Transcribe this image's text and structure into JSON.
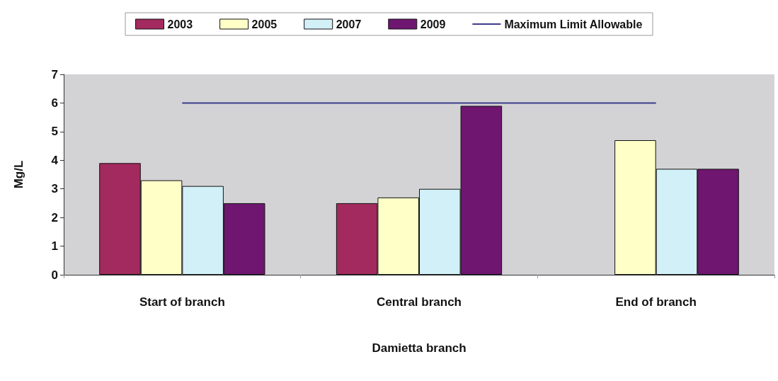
{
  "chart_data": {
    "type": "bar",
    "xlabel": "Damietta branch",
    "ylabel": "Mg/L",
    "categories": [
      "Start of branch",
      "Central branch",
      "End of branch"
    ],
    "series": [
      {
        "name": "2003",
        "color": "#a32a5e",
        "values": [
          3.9,
          2.5,
          null
        ]
      },
      {
        "name": "2005",
        "color": "#ffffc8",
        "values": [
          3.3,
          2.7,
          4.7
        ]
      },
      {
        "name": "2007",
        "color": "#d2f0f8",
        "values": [
          3.1,
          3.0,
          3.7
        ]
      },
      {
        "name": "2009",
        "color": "#6e1670",
        "values": [
          2.5,
          5.9,
          3.7
        ]
      },
      {
        "name": "Maximum Limit Allowable",
        "type": "line",
        "color": "#3c3c8c",
        "values": [
          6,
          6,
          6
        ],
        "marker": "none"
      }
    ],
    "ylim": [
      0,
      7
    ],
    "yticks": [
      0,
      1,
      2,
      3,
      4,
      5,
      6,
      7
    ],
    "grid": false,
    "legend": "top"
  }
}
